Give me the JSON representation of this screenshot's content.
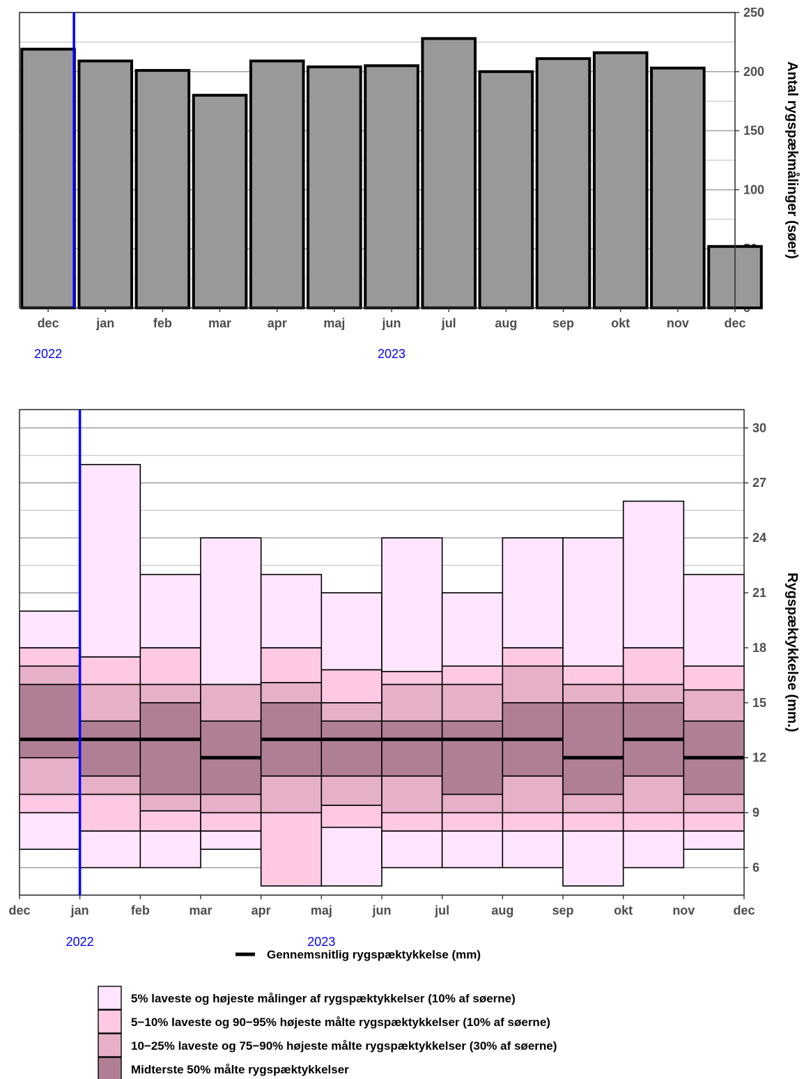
{
  "chart_data": [
    {
      "type": "bar",
      "categories": [
        "dec",
        "jan",
        "feb",
        "mar",
        "apr",
        "maj",
        "jun",
        "jul",
        "aug",
        "sep",
        "okt",
        "nov",
        "dec"
      ],
      "values": [
        219,
        209,
        201,
        180,
        209,
        204,
        205,
        228,
        200,
        211,
        216,
        203,
        52
      ],
      "ylabel": "Antal rygspækmålinger (søer)",
      "ylim": [
        0,
        250
      ],
      "yticks": [
        0,
        50,
        100,
        150,
        200,
        250
      ],
      "year_labels": [
        {
          "label": "2022",
          "at": "dec"
        },
        {
          "label": "2023",
          "at": "jun"
        }
      ],
      "year_divider_between": [
        "dec",
        "jan"
      ],
      "colors": {
        "bar": "#999999",
        "edge": "#000000",
        "divider": "#0000ff"
      },
      "axis": "right",
      "grid": true
    },
    {
      "type": "area",
      "x_ticks": [
        "dec",
        "jan",
        "feb",
        "mar",
        "apr",
        "maj",
        "jun",
        "jul",
        "aug",
        "sep",
        "okt",
        "nov",
        "dec"
      ],
      "ylabel": "Rygspæktykkelse (mm.)",
      "ylim": [
        4.5,
        31
      ],
      "yticks": [
        6,
        9,
        12,
        15,
        18,
        21,
        24,
        27,
        30
      ],
      "year_labels": [
        {
          "label": "2022",
          "at": "jan"
        },
        {
          "label": "2023",
          "at": "maj"
        }
      ],
      "year_divider_at": "jan",
      "axis": "right",
      "grid": true,
      "quantile_boxes": [
        {
          "month": "dec",
          "p0": 7,
          "p5": 9,
          "p10": 10,
          "p25": 12,
          "mean": 13,
          "p75": 16,
          "p90": 17,
          "p95": 18,
          "p100": 20
        },
        {
          "month": "jan",
          "p0": 6,
          "p5": 8,
          "p10": 10,
          "p25": 11,
          "mean": 13,
          "p75": 14,
          "p90": 16,
          "p95": 17.5,
          "p100": 28
        },
        {
          "month": "feb",
          "p0": 6,
          "p5": 8,
          "p10": 9.1,
          "p25": 10,
          "mean": 13,
          "p75": 15,
          "p90": 16,
          "p95": 18,
          "p100": 22
        },
        {
          "month": "mar",
          "p0": 7,
          "p5": 8,
          "p10": 9,
          "p25": 10,
          "mean": 12,
          "p75": 14,
          "p90": 16,
          "p95": 16,
          "p100": 24
        },
        {
          "month": "apr",
          "p0": 5,
          "p5": 5,
          "p10": 9,
          "p25": 11,
          "mean": 13,
          "p75": 15,
          "p90": 16.1,
          "p95": 18,
          "p100": 22
        },
        {
          "month": "maj",
          "p0": 5,
          "p5": 8.2,
          "p10": 9.4,
          "p25": 11,
          "mean": 13,
          "p75": 14,
          "p90": 15,
          "p95": 16.8,
          "p100": 21
        },
        {
          "month": "jun",
          "p0": 6,
          "p5": 8,
          "p10": 9,
          "p25": 11,
          "mean": 13,
          "p75": 14,
          "p90": 16,
          "p95": 16.7,
          "p100": 24
        },
        {
          "month": "jul",
          "p0": 6,
          "p5": 8,
          "p10": 9,
          "p25": 10,
          "mean": 13,
          "p75": 14,
          "p90": 16,
          "p95": 17,
          "p100": 21
        },
        {
          "month": "aug",
          "p0": 6,
          "p5": 8,
          "p10": 9,
          "p25": 11,
          "mean": 13,
          "p75": 15,
          "p90": 17,
          "p95": 18,
          "p100": 24
        },
        {
          "month": "sep",
          "p0": 5,
          "p5": 8,
          "p10": 9,
          "p25": 10,
          "mean": 12,
          "p75": 15,
          "p90": 16,
          "p95": 17,
          "p100": 24
        },
        {
          "month": "okt",
          "p0": 6,
          "p5": 8,
          "p10": 9,
          "p25": 11,
          "mean": 13,
          "p75": 15,
          "p90": 16,
          "p95": 18,
          "p100": 26
        },
        {
          "month": "nov",
          "p0": 7,
          "p5": 8,
          "p10": 9,
          "p25": 10,
          "mean": 12,
          "p75": 14,
          "p90": 15.7,
          "p95": 17,
          "p100": 22
        }
      ],
      "colors": {
        "band_outer": "#ffe5ff",
        "band_5_10": "#ffc8e3",
        "band_10_25": "#e5b0c8",
        "band_middle": "#b07f95",
        "mean_line": "#000000",
        "divider": "#0000ff"
      },
      "legend": {
        "placement": "bottom",
        "mean_label": "Gennemsnitlig rygspæktykkelse (mm)",
        "items": [
          {
            "label": "5% laveste og højeste målinger af rygspæktykkelser (10% af søerne)",
            "color": "#ffe5ff"
          },
          {
            "label": "5−10% laveste og 90−95% højeste målte rygspæktykkelser (10% af søerne)",
            "color": "#ffc8e3"
          },
          {
            "label": "10−25% laveste og 75−90% højeste målte rygspæktykkelser (30% af søerne)",
            "color": "#e5b0c8"
          },
          {
            "label": "Midterste 50% målte rygspæktykkelser",
            "color": "#b07f95"
          }
        ]
      }
    }
  ]
}
